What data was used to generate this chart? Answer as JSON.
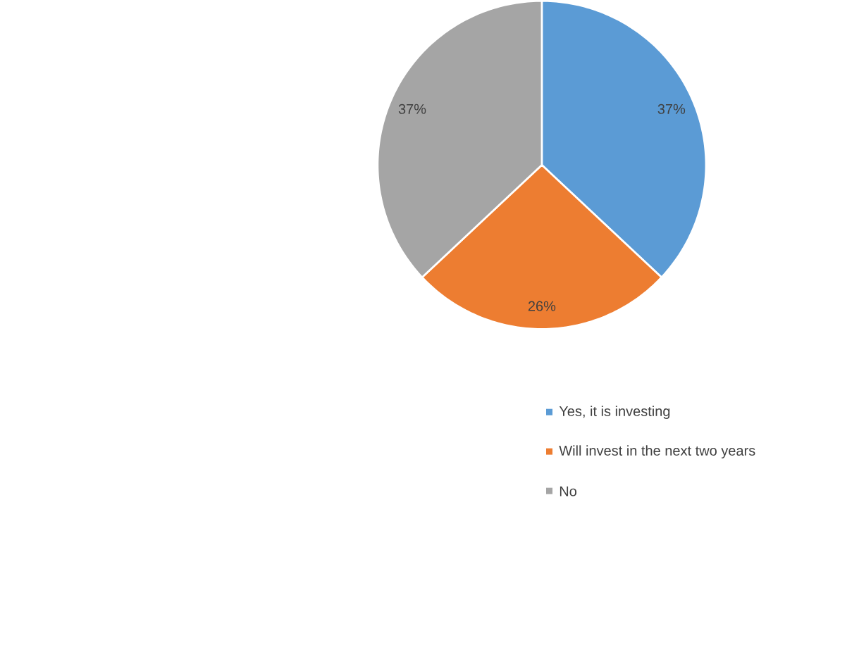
{
  "chart_data": {
    "type": "pie",
    "categories": [
      "Yes, it is investing",
      "Will invest in the next two years",
      "No"
    ],
    "values": [
      37,
      26,
      37
    ],
    "colors": [
      "#5b9bd5",
      "#ed7d31",
      "#a5a5a5"
    ],
    "value_labels": [
      "37%",
      "26%",
      "37%"
    ],
    "legend": "right"
  }
}
